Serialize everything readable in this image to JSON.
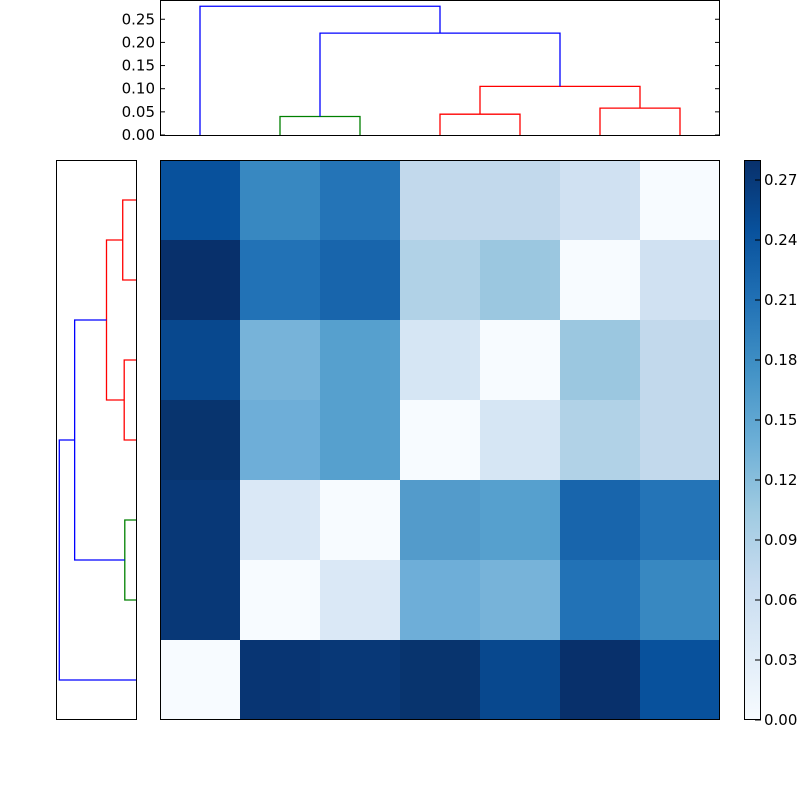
{
  "chart_data": {
    "type": "heatmap",
    "title": "",
    "description": "Clustered distance matrix heatmap with top and left dendrograms and colorbar",
    "colormap": "Blues",
    "rows": 7,
    "cols": 7,
    "values": [
      [
        0.235,
        0.17,
        0.195,
        0.06,
        0.06,
        0.045,
        0.003
      ],
      [
        0.275,
        0.2,
        0.21,
        0.075,
        0.09,
        0.003,
        0.045
      ],
      [
        0.245,
        0.125,
        0.145,
        0.035,
        0.003,
        0.09,
        0.06
      ],
      [
        0.265,
        0.13,
        0.145,
        0.003,
        0.035,
        0.075,
        0.06
      ],
      [
        0.265,
        0.035,
        0.003,
        0.145,
        0.145,
        0.21,
        0.195
      ],
      [
        0.265,
        0.003,
        0.035,
        0.13,
        0.125,
        0.2,
        0.17
      ],
      [
        0.003,
        0.265,
        0.265,
        0.265,
        0.245,
        0.275,
        0.235
      ]
    ],
    "cell_colors": [
      [
        "#08519c",
        "#3888c1",
        "#2474b7",
        "#c2d9ec",
        "#c2d9ec",
        "#d0e1f2",
        "#f7fbff"
      ],
      [
        "#08306b",
        "#2272b6",
        "#1865ac",
        "#b1d2e7",
        "#9bc7e0",
        "#f7fbff",
        "#d0e1f2"
      ],
      [
        "#08488e",
        "#77b3d9",
        "#56a0ce",
        "#d6e6f4",
        "#f7fbff",
        "#9bc7e0",
        "#c2d9ec"
      ],
      [
        "#08346e",
        "#6eaed8",
        "#56a0ce",
        "#f7fbff",
        "#d6e6f4",
        "#b1d2e7",
        "#c2d9ec"
      ],
      [
        "#083877",
        "#dae8f6",
        "#f7fbff",
        "#539bcb",
        "#56a0ce",
        "#1865ac",
        "#2474b7"
      ],
      [
        "#083877",
        "#f7fbff",
        "#dae8f6",
        "#6eaed8",
        "#77b3d9",
        "#2272b6",
        "#3888c1"
      ],
      [
        "#f7fbff",
        "#083573",
        "#083877",
        "#08346e",
        "#08488e",
        "#08306b",
        "#08519c"
      ]
    ],
    "colorbar": {
      "ticks": [
        "0.00",
        "0.03",
        "0.06",
        "0.09",
        "0.12",
        "0.15",
        "0.18",
        "0.21",
        "0.24",
        "0.27"
      ],
      "vmin": 0.0,
      "vmax": 0.28
    },
    "top_dendrogram": {
      "ylabel": "",
      "yticks": [
        "0.00",
        "0.05",
        "0.10",
        "0.15",
        "0.20",
        "0.25"
      ],
      "ylim": [
        0,
        0.29
      ],
      "leaf_count": 7,
      "merges": [
        {
          "color": "#008000",
          "leaves": [
            1,
            2
          ],
          "height": 0.04
        },
        {
          "color": "#ff0000",
          "leaves": [
            3,
            4
          ],
          "height": 0.045
        },
        {
          "color": "#ff0000",
          "leaves": [
            5,
            6
          ],
          "height": 0.058
        },
        {
          "color": "#ff0000",
          "children": [
            "3-4",
            "5-6"
          ],
          "height": 0.105
        },
        {
          "color": "#0000ff",
          "children": [
            "1-2",
            "3-6"
          ],
          "height": 0.22
        },
        {
          "color": "#0000ff",
          "children": [
            "0",
            "1-6"
          ],
          "height": 0.278
        }
      ]
    },
    "left_dendrogram": {
      "orientation": "left",
      "leaf_count": 7,
      "merges": [
        {
          "color": "#ff0000",
          "leaves": [
            0,
            1
          ],
          "height": 0.045
        },
        {
          "color": "#ff0000",
          "leaves": [
            2,
            3
          ],
          "height": 0.04
        },
        {
          "color": "#ff0000",
          "children": [
            "0-1",
            "2-3"
          ],
          "height": 0.1
        },
        {
          "color": "#008000",
          "leaves": [
            4,
            5
          ],
          "height": 0.038
        },
        {
          "color": "#0000ff",
          "children": [
            "0-3",
            "4-5"
          ],
          "height": 0.208
        },
        {
          "color": "#0000ff",
          "children": [
            "0-5",
            "6"
          ],
          "height": 0.26
        }
      ]
    },
    "grid": false,
    "legend": "none"
  }
}
